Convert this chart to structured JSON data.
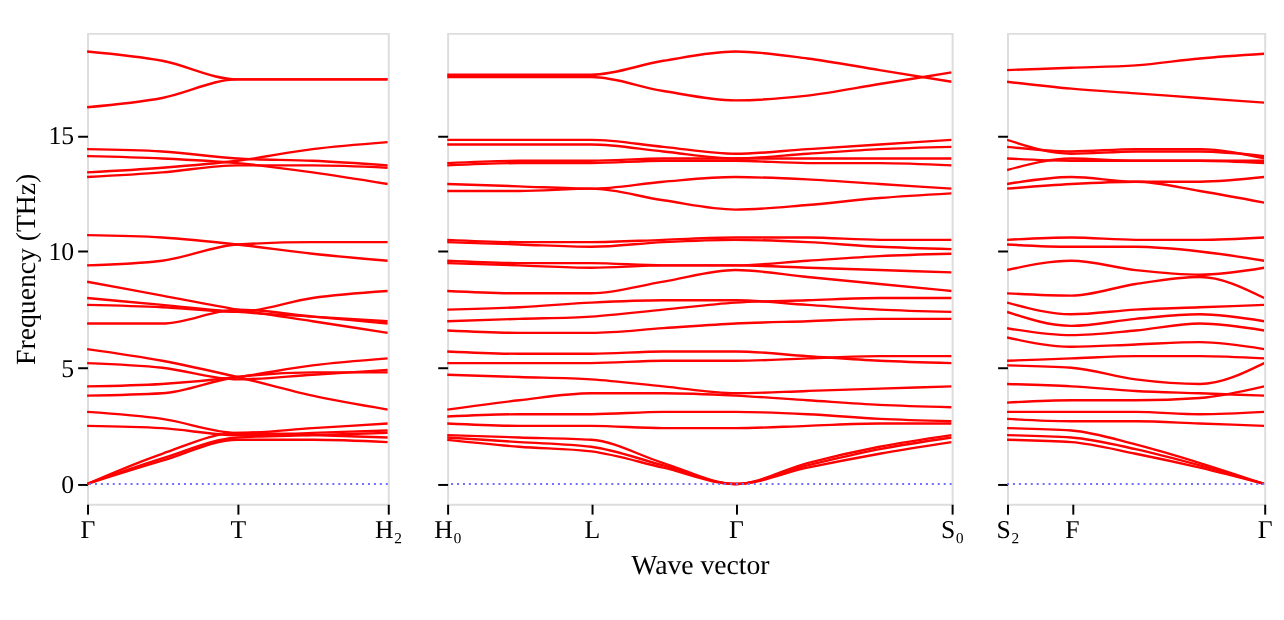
{
  "chart_data": [
    {
      "type": "line",
      "ylabel": "Frequency (THz)",
      "categories": [
        "Γ",
        null,
        "T",
        null,
        "H₂"
      ],
      "ylim": [
        -0.85,
        19.4
      ],
      "yticks": [
        0,
        5,
        10,
        15
      ],
      "grid": false,
      "legend": false,
      "line_style": "solid",
      "marker": "none",
      "ref_lines": [
        {
          "axis": "y",
          "value": 0,
          "color": "#6f6fff",
          "line_style": "dotted"
        }
      ],
      "series": [
        {
          "color": "#ff0000",
          "values": [
            18.6,
            18.2,
            17.4,
            17.4,
            17.4
          ]
        },
        {
          "color": "#ff0000",
          "values": [
            16.2,
            16.6,
            17.4,
            17.4,
            17.4
          ]
        },
        {
          "color": "#ff0000",
          "values": [
            14.4,
            14.3,
            14.0,
            13.9,
            13.7
          ]
        },
        {
          "color": "#ff0000",
          "values": [
            14.1,
            14.0,
            13.8,
            13.4,
            12.9
          ]
        },
        {
          "color": "#ff0000",
          "values": [
            13.4,
            13.6,
            13.9,
            14.4,
            14.7
          ]
        },
        {
          "color": "#ff0000",
          "values": [
            13.2,
            13.4,
            13.7,
            13.7,
            13.6
          ]
        },
        {
          "color": "#ff0000",
          "values": [
            10.7,
            10.6,
            10.3,
            9.9,
            9.6
          ]
        },
        {
          "color": "#ff0000",
          "values": [
            9.4,
            9.6,
            10.3,
            10.4,
            10.4
          ]
        },
        {
          "color": "#ff0000",
          "values": [
            8.7,
            8.1,
            7.5,
            7.0,
            6.5
          ]
        },
        {
          "color": "#ff0000",
          "values": [
            8.0,
            7.7,
            7.4,
            7.2,
            7.0
          ]
        },
        {
          "color": "#ff0000",
          "values": [
            7.7,
            7.6,
            7.4,
            8.0,
            8.3
          ]
        },
        {
          "color": "#ff0000",
          "values": [
            6.9,
            6.9,
            7.5,
            7.2,
            6.9
          ]
        },
        {
          "color": "#ff0000",
          "values": [
            5.8,
            5.3,
            4.6,
            3.8,
            3.2
          ]
        },
        {
          "color": "#ff0000",
          "values": [
            5.2,
            5.0,
            4.5,
            4.7,
            4.9
          ]
        },
        {
          "color": "#ff0000",
          "values": [
            4.2,
            4.3,
            4.6,
            5.1,
            5.4
          ]
        },
        {
          "color": "#ff0000",
          "values": [
            3.8,
            3.9,
            4.6,
            4.8,
            4.8
          ]
        },
        {
          "color": "#ff0000",
          "values": [
            3.1,
            2.8,
            2.2,
            2.4,
            2.6
          ]
        },
        {
          "color": "#ff0000",
          "values": [
            2.5,
            2.4,
            2.1,
            2.2,
            2.3
          ]
        },
        {
          "color": "#ff0000",
          "values": [
            0,
            1.3,
            2.2,
            2.1,
            2.0
          ]
        },
        {
          "color": "#ff0000",
          "values": [
            0,
            1.1,
            2.0,
            2.1,
            2.2
          ]
        },
        {
          "color": "#ff0000",
          "values": [
            0,
            1.0,
            1.9,
            1.9,
            1.8
          ]
        }
      ]
    },
    {
      "type": "line",
      "xlabel": "Wave vector",
      "categories": [
        "H₀",
        null,
        "L",
        null,
        "Γ",
        null,
        null,
        "S₀"
      ],
      "ylim": [
        -0.85,
        19.4
      ],
      "yticks": [
        0,
        5,
        10,
        15
      ],
      "tick_labels": "x",
      "grid": false,
      "legend": false,
      "line_style": "solid",
      "marker": "none",
      "ref_lines": [
        {
          "axis": "y",
          "value": 0,
          "color": "#6f6fff",
          "line_style": "dotted"
        }
      ],
      "series": [
        {
          "color": "#ff0000",
          "values": [
            17.6,
            17.6,
            17.6,
            18.2,
            18.6,
            18.3,
            17.8,
            17.3
          ]
        },
        {
          "color": "#ff0000",
          "values": [
            17.5,
            17.5,
            17.5,
            16.9,
            16.5,
            16.7,
            17.2,
            17.7
          ]
        },
        {
          "color": "#ff0000",
          "values": [
            14.8,
            14.8,
            14.8,
            14.5,
            14.2,
            14.4,
            14.6,
            14.8
          ]
        },
        {
          "color": "#ff0000",
          "values": [
            14.6,
            14.6,
            14.6,
            14.3,
            14.0,
            14.2,
            14.4,
            14.5
          ]
        },
        {
          "color": "#ff0000",
          "values": [
            13.8,
            13.9,
            13.9,
            14.0,
            14.0,
            14.0,
            14.0,
            14.0
          ]
        },
        {
          "color": "#ff0000",
          "values": [
            13.7,
            13.8,
            13.8,
            13.9,
            13.9,
            13.8,
            13.8,
            13.7
          ]
        },
        {
          "color": "#ff0000",
          "values": [
            12.9,
            12.8,
            12.7,
            13.0,
            13.2,
            13.1,
            12.9,
            12.7
          ]
        },
        {
          "color": "#ff0000",
          "values": [
            12.6,
            12.6,
            12.7,
            12.2,
            11.8,
            12.0,
            12.3,
            12.5
          ]
        },
        {
          "color": "#ff0000",
          "values": [
            10.5,
            10.4,
            10.4,
            10.5,
            10.6,
            10.6,
            10.5,
            10.5
          ]
        },
        {
          "color": "#ff0000",
          "values": [
            10.4,
            10.3,
            10.2,
            10.4,
            10.5,
            10.4,
            10.2,
            10.1
          ]
        },
        {
          "color": "#ff0000",
          "values": [
            9.6,
            9.5,
            9.5,
            9.4,
            9.4,
            9.6,
            9.8,
            9.9
          ]
        },
        {
          "color": "#ff0000",
          "values": [
            9.5,
            9.4,
            9.3,
            9.4,
            9.4,
            9.3,
            9.2,
            9.1
          ]
        },
        {
          "color": "#ff0000",
          "values": [
            8.3,
            8.2,
            8.2,
            8.7,
            9.2,
            8.9,
            8.6,
            8.3
          ]
        },
        {
          "color": "#ff0000",
          "values": [
            7.5,
            7.6,
            7.8,
            7.9,
            7.9,
            7.7,
            7.5,
            7.4
          ]
        },
        {
          "color": "#ff0000",
          "values": [
            7.0,
            7.1,
            7.2,
            7.5,
            7.8,
            7.9,
            8.0,
            8.0
          ]
        },
        {
          "color": "#ff0000",
          "values": [
            6.6,
            6.5,
            6.5,
            6.7,
            6.9,
            7.0,
            7.1,
            7.1
          ]
        },
        {
          "color": "#ff0000",
          "values": [
            5.7,
            5.6,
            5.6,
            5.7,
            5.7,
            5.5,
            5.3,
            5.2
          ]
        },
        {
          "color": "#ff0000",
          "values": [
            5.2,
            5.2,
            5.2,
            5.3,
            5.3,
            5.4,
            5.5,
            5.5
          ]
        },
        {
          "color": "#ff0000",
          "values": [
            4.7,
            4.6,
            4.5,
            4.2,
            3.9,
            4.0,
            4.1,
            4.2
          ]
        },
        {
          "color": "#ff0000",
          "values": [
            3.2,
            3.6,
            3.9,
            3.9,
            3.8,
            3.6,
            3.4,
            3.3
          ]
        },
        {
          "color": "#ff0000",
          "values": [
            2.9,
            3.0,
            3.0,
            3.1,
            3.1,
            3.0,
            2.8,
            2.7
          ]
        },
        {
          "color": "#ff0000",
          "values": [
            2.6,
            2.5,
            2.5,
            2.4,
            2.4,
            2.5,
            2.6,
            2.6
          ]
        },
        {
          "color": "#ff0000",
          "values": [
            2.1,
            2.0,
            1.9,
            0.9,
            0,
            0.8,
            1.5,
            2.0
          ]
        },
        {
          "color": "#ff0000",
          "values": [
            2.0,
            1.8,
            1.6,
            0.8,
            0,
            0.7,
            1.3,
            1.8
          ]
        },
        {
          "color": "#ff0000",
          "values": [
            1.9,
            1.6,
            1.4,
            0.7,
            0,
            0.9,
            1.6,
            2.1
          ]
        }
      ]
    },
    {
      "type": "line",
      "categories": [
        "S₂",
        "F",
        null,
        null,
        "Γ"
      ],
      "ylim": [
        -0.85,
        19.4
      ],
      "yticks": [
        0,
        5,
        10,
        15
      ],
      "tick_labels": "x",
      "grid": false,
      "legend": false,
      "line_style": "solid",
      "marker": "none",
      "ref_lines": [
        {
          "axis": "y",
          "value": 0,
          "color": "#6f6fff",
          "line_style": "dotted"
        }
      ],
      "series": [
        {
          "color": "#ff0000",
          "values": [
            17.8,
            17.9,
            18.0,
            18.3,
            18.5
          ]
        },
        {
          "color": "#ff0000",
          "values": [
            17.3,
            17.0,
            16.8,
            16.6,
            16.4
          ]
        },
        {
          "color": "#ff0000",
          "values": [
            14.8,
            14.2,
            14.3,
            14.3,
            14.1
          ]
        },
        {
          "color": "#ff0000",
          "values": [
            14.5,
            14.3,
            14.4,
            14.4,
            14.0
          ]
        },
        {
          "color": "#ff0000",
          "values": [
            14.0,
            13.9,
            13.9,
            13.9,
            13.9
          ]
        },
        {
          "color": "#ff0000",
          "values": [
            13.5,
            14.0,
            13.9,
            13.9,
            13.8
          ]
        },
        {
          "color": "#ff0000",
          "values": [
            12.9,
            13.2,
            13.0,
            13.0,
            13.2
          ]
        },
        {
          "color": "#ff0000",
          "values": [
            12.7,
            12.9,
            13.0,
            12.6,
            12.1
          ]
        },
        {
          "color": "#ff0000",
          "values": [
            10.5,
            10.6,
            10.5,
            10.5,
            10.6
          ]
        },
        {
          "color": "#ff0000",
          "values": [
            10.3,
            10.2,
            10.2,
            10.0,
            9.6
          ]
        },
        {
          "color": "#ff0000",
          "values": [
            9.2,
            9.6,
            9.2,
            9.0,
            9.3
          ]
        },
        {
          "color": "#ff0000",
          "values": [
            8.2,
            8.1,
            8.6,
            8.9,
            8.0
          ]
        },
        {
          "color": "#ff0000",
          "values": [
            7.8,
            7.3,
            7.5,
            7.6,
            7.7
          ]
        },
        {
          "color": "#ff0000",
          "values": [
            7.4,
            6.8,
            7.1,
            7.3,
            7.0
          ]
        },
        {
          "color": "#ff0000",
          "values": [
            6.7,
            6.4,
            6.6,
            6.9,
            6.6
          ]
        },
        {
          "color": "#ff0000",
          "values": [
            6.3,
            5.9,
            6.0,
            6.1,
            5.8
          ]
        },
        {
          "color": "#ff0000",
          "values": [
            5.3,
            5.4,
            5.5,
            5.5,
            5.4
          ]
        },
        {
          "color": "#ff0000",
          "values": [
            5.1,
            5.0,
            4.5,
            4.3,
            5.2
          ]
        },
        {
          "color": "#ff0000",
          "values": [
            4.3,
            4.2,
            4.0,
            3.9,
            3.8
          ]
        },
        {
          "color": "#ff0000",
          "values": [
            3.5,
            3.6,
            3.6,
            3.7,
            4.2
          ]
        },
        {
          "color": "#ff0000",
          "values": [
            3.1,
            3.1,
            3.1,
            3.0,
            3.1
          ]
        },
        {
          "color": "#ff0000",
          "values": [
            2.8,
            2.7,
            2.7,
            2.6,
            2.5
          ]
        },
        {
          "color": "#ff0000",
          "values": [
            2.4,
            2.3,
            1.7,
            0.9,
            0
          ]
        },
        {
          "color": "#ff0000",
          "values": [
            2.1,
            2.0,
            1.5,
            0.8,
            0
          ]
        },
        {
          "color": "#ff0000",
          "values": [
            1.9,
            1.8,
            1.3,
            0.7,
            0
          ]
        }
      ]
    }
  ]
}
